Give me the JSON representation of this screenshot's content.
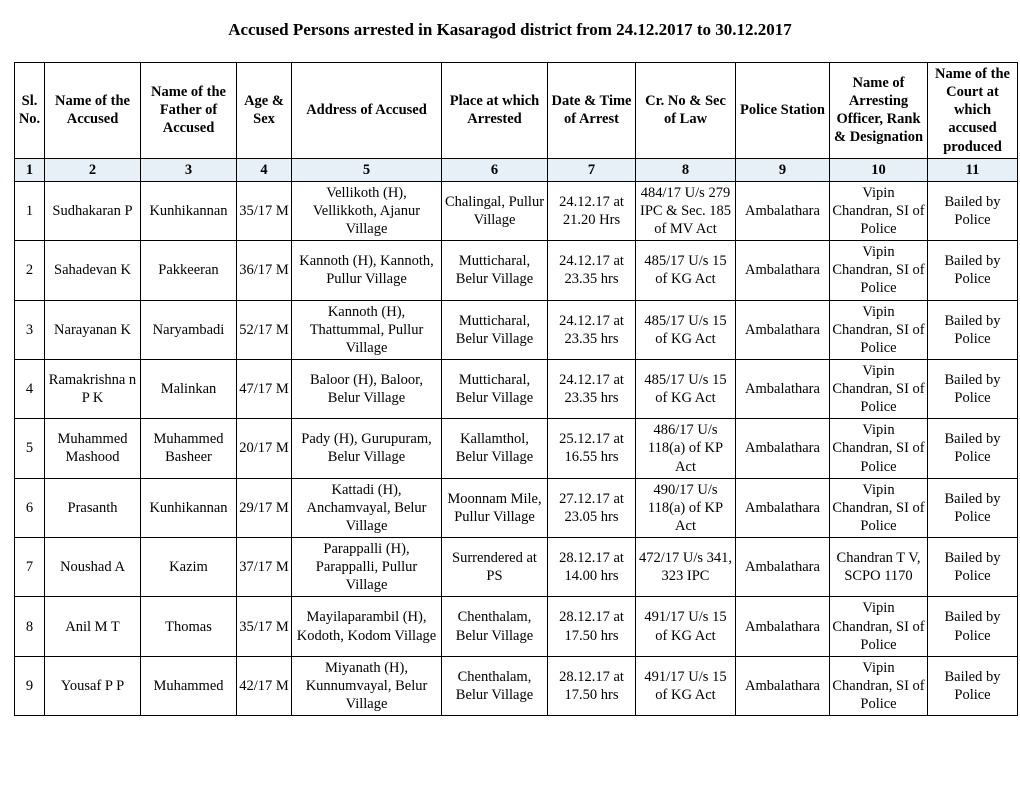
{
  "title": "Accused Persons arrested in   Kasaragod    district from   24.12.2017 to 30.12.2017",
  "columns": [
    "Sl. No.",
    "Name of the Accused",
    "Name of the Father of Accused",
    "Age & Sex",
    "Address of Accused",
    "Place at which Arrested",
    "Date & Time of Arrest",
    "Cr. No & Sec of Law",
    "Police Station",
    "Name of Arresting Officer, Rank & Designation",
    "Name of the Court at which accused produced"
  ],
  "col_numbers": [
    "1",
    "2",
    "3",
    "4",
    "5",
    "6",
    "7",
    "8",
    "9",
    "10",
    "11"
  ],
  "rows": [
    {
      "sl": "1",
      "name": "Sudhakaran P",
      "father": "Kunhikannan",
      "age": "35/17 M",
      "addr": "Vellikoth (H), Vellikkoth, Ajanur Village",
      "place": "Chalingal, Pullur Village",
      "dt": "24.12.17 at 21.20 Hrs",
      "cr": "484/17 U/s 279 IPC & Sec. 185 of MV Act",
      "ps": "Ambalathara",
      "officer": "Vipin Chandran, SI of Police",
      "court": "Bailed by Police"
    },
    {
      "sl": "2",
      "name": "Sahadevan K",
      "father": "Pakkeeran",
      "age": "36/17 M",
      "addr": "Kannoth (H), Kannoth, Pullur Village",
      "place": "Mutticharal, Belur Village",
      "dt": "24.12.17 at 23.35 hrs",
      "cr": "485/17 U/s 15 of KG Act",
      "ps": "Ambalathara",
      "officer": "Vipin Chandran, SI of Police",
      "court": "Bailed by Police"
    },
    {
      "sl": "3",
      "name": "Narayanan K",
      "father": "Naryambadi",
      "age": "52/17 M",
      "addr": "Kannoth (H), Thattummal, Pullur Village",
      "place": "Mutticharal, Belur Village",
      "dt": "24.12.17 at 23.35 hrs",
      "cr": "485/17 U/s 15 of KG Act",
      "ps": "Ambalathara",
      "officer": "Vipin Chandran, SI of Police",
      "court": "Bailed by Police"
    },
    {
      "sl": "4",
      "name": "Ramakrishna n P K",
      "father": "Malinkan",
      "age": "47/17 M",
      "addr": "Baloor (H), Baloor, Belur Village",
      "place": "Mutticharal, Belur Village",
      "dt": "24.12.17 at 23.35 hrs",
      "cr": "485/17 U/s 15 of KG Act",
      "ps": "Ambalathara",
      "officer": "Vipin Chandran, SI of Police",
      "court": "Bailed by Police"
    },
    {
      "sl": "5",
      "name": "Muhammed Mashood",
      "father": "Muhammed Basheer",
      "age": "20/17 M",
      "addr": "Pady (H), Gurupuram, Belur Village",
      "place": "Kallamthol, Belur Village",
      "dt": "25.12.17 at 16.55 hrs",
      "cr": "486/17 U/s 118(a) of KP Act",
      "ps": "Ambalathara",
      "officer": "Vipin Chandran, SI of Police",
      "court": "Bailed by Police"
    },
    {
      "sl": "6",
      "name": "Prasanth",
      "father": "Kunhikannan",
      "age": "29/17 M",
      "addr": "Kattadi (H), Anchamvayal, Belur Village",
      "place": "Moonnam Mile, Pullur Village",
      "dt": "27.12.17 at 23.05 hrs",
      "cr": "490/17 U/s 118(a) of KP Act",
      "ps": "Ambalathara",
      "officer": "Vipin Chandran, SI of Police",
      "court": "Bailed by Police"
    },
    {
      "sl": "7",
      "name": "Noushad A",
      "father": "Kazim",
      "age": "37/17 M",
      "addr": "Parappalli (H), Parappalli, Pullur Village",
      "place": "Surrendered at PS",
      "dt": "28.12.17 at 14.00 hrs",
      "cr": "472/17 U/s 341, 323 IPC",
      "ps": "Ambalathara",
      "officer": "Chandran T V, SCPO 1170",
      "court": "Bailed by Police"
    },
    {
      "sl": "8",
      "name": "Anil M T",
      "father": "Thomas",
      "age": "35/17 M",
      "addr": "Mayilaparambil (H), Kodoth, Kodom Village",
      "place": "Chenthalam, Belur Village",
      "dt": "28.12.17 at 17.50 hrs",
      "cr": "491/17 U/s 15 of KG Act",
      "ps": "Ambalathara",
      "officer": "Vipin Chandran, SI of Police",
      "court": "Bailed by Police"
    },
    {
      "sl": "9",
      "name": "Yousaf P P",
      "father": "Muhammed",
      "age": "42/17 M",
      "addr": "Miyanath (H), Kunnumvayal, Belur Village",
      "place": "Chenthalam, Belur Village",
      "dt": "28.12.17 at 17.50 hrs",
      "cr": "491/17 U/s 15 of KG Act",
      "ps": "Ambalathara",
      "officer": "Vipin Chandran, SI of Police",
      "court": "Bailed by Police"
    }
  ]
}
